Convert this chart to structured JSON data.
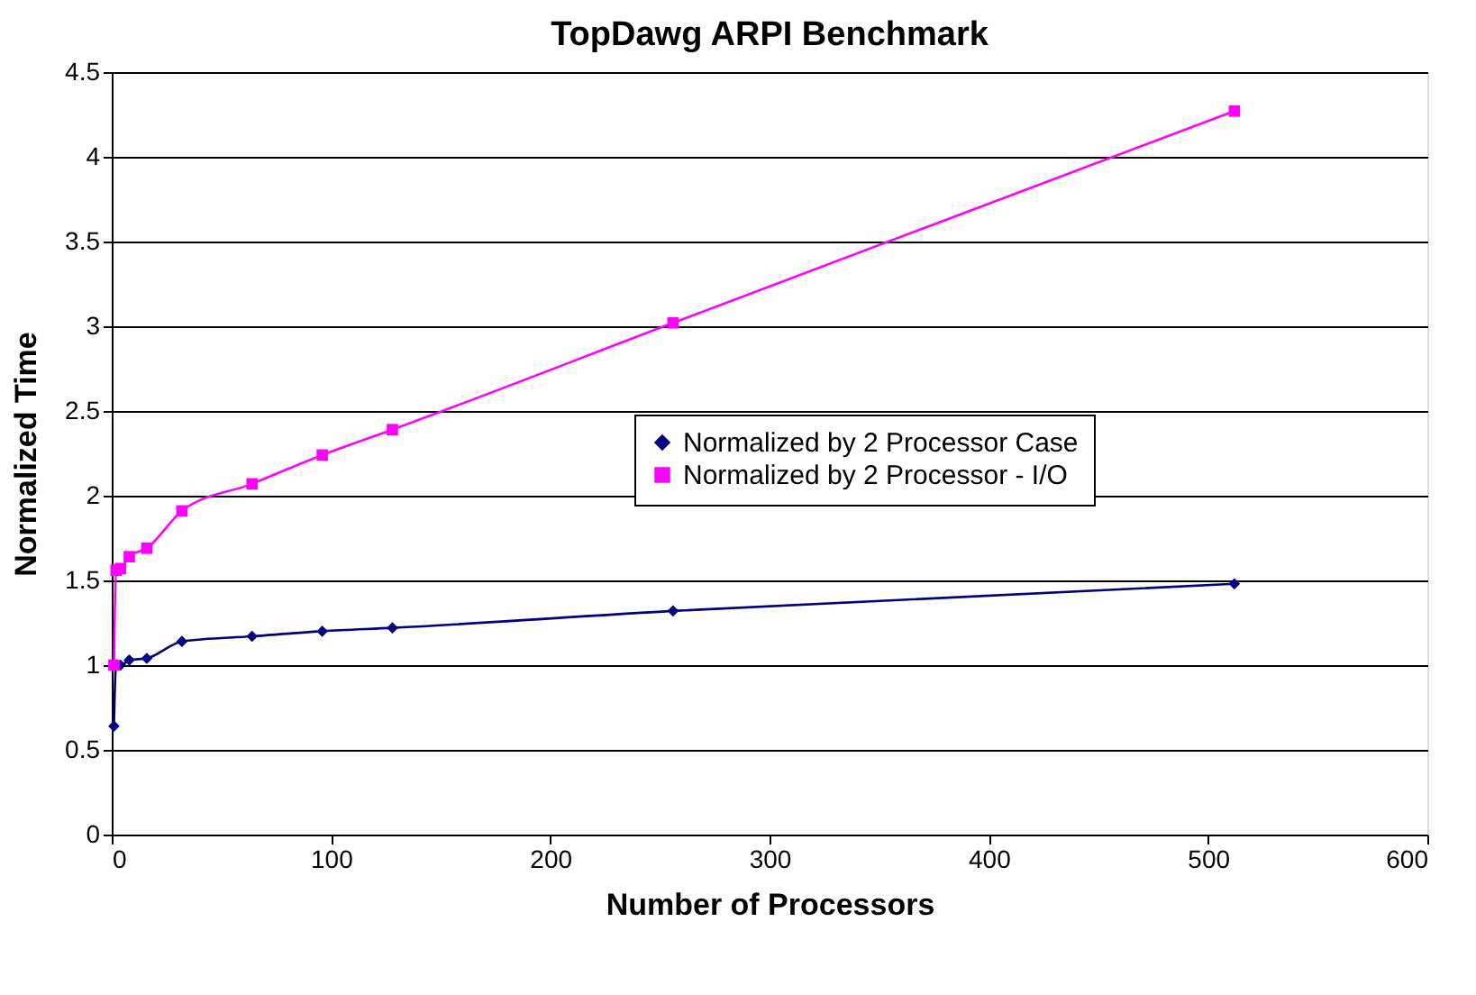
{
  "chart_data": {
    "type": "line",
    "title": "TopDawg ARPI Benchmark",
    "xlabel": "Number of Processors",
    "ylabel": "Normalized Time",
    "x": [
      1,
      2,
      4,
      8,
      16,
      32,
      64,
      96,
      128,
      256,
      512
    ],
    "series": [
      {
        "name": "Normalized by 2 Processor Case",
        "color": "#000080",
        "marker": "diamond",
        "values": [
          0.64,
          1.0,
          1.0,
          1.03,
          1.04,
          1.14,
          1.17,
          1.2,
          1.22,
          1.32,
          1.48
        ]
      },
      {
        "name": "Normalized by 2 Processor - I/O",
        "color": "#ff00ff",
        "marker": "square",
        "values": [
          1.0,
          1.56,
          1.57,
          1.64,
          1.69,
          1.91,
          2.07,
          2.24,
          2.39,
          3.02,
          4.27
        ]
      }
    ],
    "xlim": [
      0,
      600
    ],
    "xticks": [
      0,
      100,
      200,
      300,
      400,
      500,
      600
    ],
    "ylim": [
      0,
      4.5
    ],
    "yticks": [
      0,
      0.5,
      1,
      1.5,
      2,
      2.5,
      3,
      3.5,
      4,
      4.5
    ],
    "grid": "y",
    "legend": "right",
    "line_style": "solid"
  }
}
